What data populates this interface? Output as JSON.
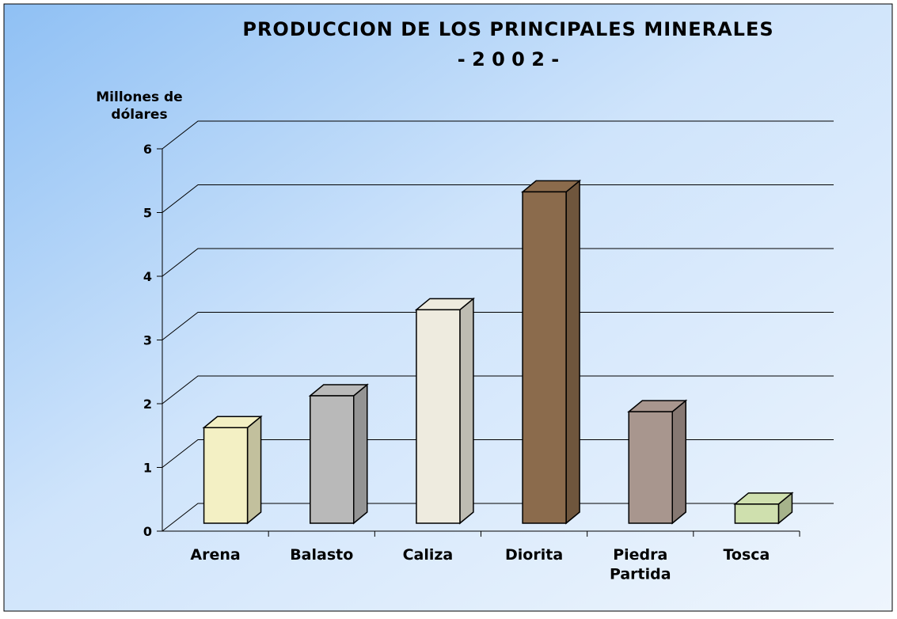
{
  "chart_data": {
    "type": "bar",
    "title": "PRODUCCION DE LOS PRINCIPALES MINERALES",
    "subtitle": "- 2 0 0 2 -",
    "y_label": "Millones de dólares",
    "categories": [
      "Arena",
      "Balasto",
      "Caliza",
      "Diorita",
      "Piedra Partida",
      "Tosca"
    ],
    "values": [
      1.5,
      2.0,
      3.35,
      5.2,
      1.75,
      0.3
    ],
    "colors": [
      "#f3f0c4",
      "#b9b9b9",
      "#eeebdf",
      "#8b6b4c",
      "#a8968e",
      "#cfe0ae"
    ],
    "ylim": [
      0,
      6
    ],
    "yticks": [
      0,
      1,
      2,
      3,
      4,
      5,
      6
    ],
    "grid": true
  }
}
